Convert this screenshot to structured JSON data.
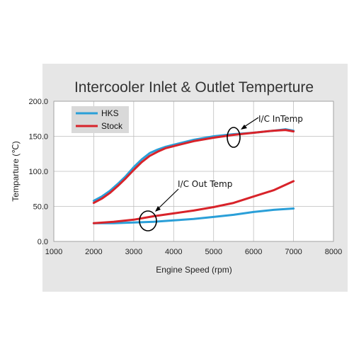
{
  "chart_data": {
    "type": "line",
    "title": "Intercooler Inlet & Outlet Temperture",
    "xlabel": "Engine Speed (rpm)",
    "ylabel": "Temparture (℃)",
    "xlim": [
      1000,
      8000
    ],
    "ylim": [
      0,
      200
    ],
    "x_ticks": [
      1000,
      2000,
      3000,
      4000,
      5000,
      6000,
      7000,
      8000
    ],
    "x_tick_labels": [
      "1000",
      "2000",
      "3000",
      "4000",
      "5000",
      "6000",
      "7000",
      "8000"
    ],
    "y_ticks": [
      0,
      50,
      100,
      150,
      200
    ],
    "y_tick_labels": [
      "0.0",
      "50.0",
      "100.0",
      "150.0",
      "200.0"
    ],
    "grid": true,
    "legend_position": "top-left",
    "series": [
      {
        "name": "HKS",
        "color": "#2a9fd8",
        "group": "inlet",
        "x": [
          2000,
          2200,
          2400,
          2600,
          2800,
          3000,
          3200,
          3400,
          3600,
          3800,
          4000,
          4500,
          5000,
          5500,
          6000,
          6500,
          6800,
          7000
        ],
        "y": [
          58,
          64,
          72,
          82,
          93,
          106,
          117,
          126,
          131,
          135,
          138,
          145,
          150,
          153,
          155,
          158,
          160,
          158
        ]
      },
      {
        "name": "Stock",
        "color": "#d8232a",
        "group": "inlet",
        "x": [
          2000,
          2200,
          2400,
          2600,
          2800,
          3000,
          3200,
          3400,
          3600,
          3800,
          4000,
          4500,
          5000,
          5500,
          6000,
          6500,
          6800,
          7000
        ],
        "y": [
          55,
          61,
          69,
          79,
          90,
          102,
          113,
          122,
          128,
          133,
          136,
          143,
          148,
          152,
          155,
          158,
          159,
          157
        ]
      },
      {
        "name": "HKS",
        "color": "#2a9fd8",
        "group": "outlet",
        "x": [
          2000,
          2500,
          3000,
          3500,
          4000,
          4500,
          5000,
          5500,
          6000,
          6500,
          7000
        ],
        "y": [
          26,
          26,
          27,
          28,
          30,
          32,
          35,
          38,
          42,
          45,
          47
        ]
      },
      {
        "name": "Stock",
        "color": "#d8232a",
        "group": "outlet",
        "x": [
          2000,
          2500,
          3000,
          3500,
          4000,
          4500,
          5000,
          5500,
          6000,
          6500,
          7000
        ],
        "y": [
          26,
          28,
          31,
          36,
          40,
          44,
          49,
          55,
          64,
          73,
          86
        ]
      }
    ],
    "legend": [
      {
        "label": "HKS",
        "color": "#2a9fd8"
      },
      {
        "label": "Stock",
        "color": "#d8232a"
      }
    ],
    "annotations": [
      {
        "text": "I/C InTemp",
        "target_x": 5450,
        "target_y": 150
      },
      {
        "text": "I/C Out Temp",
        "target_x": 3350,
        "target_y": 30
      }
    ]
  }
}
